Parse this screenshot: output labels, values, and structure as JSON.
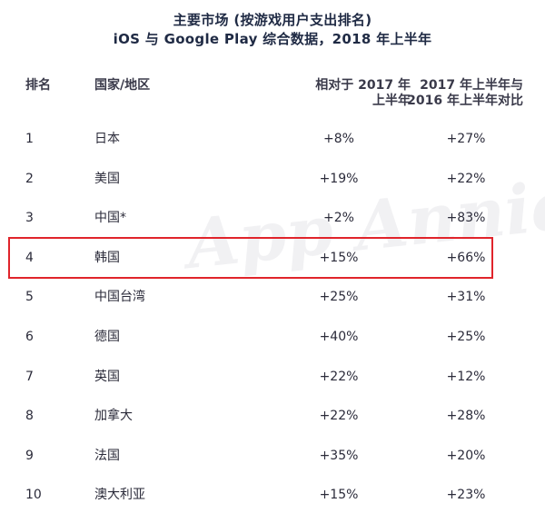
{
  "chart_data": {
    "type": "table",
    "title_line1": "主要市场 (按游戏用户支出排名)",
    "title_line2": "iOS 与 Google Play 综合数据，2018 年上半年",
    "columns": [
      "排名",
      "国家/地区",
      "相对于 2017 年上半年",
      "2017 年上半年与 2016 年上半年对比"
    ],
    "column_lines": {
      "growth": [
        "相对于 2017 年",
        "上半年"
      ],
      "compare": [
        "2017 年上半年与",
        "2016 年上半年对比"
      ]
    },
    "watermark": "App Annie",
    "highlight_rank": "4",
    "highlight_color": "#e0242b",
    "rows": [
      {
        "rank": "1",
        "country": "日本",
        "growth": "+8%",
        "compare": "+27%"
      },
      {
        "rank": "2",
        "country": "美国",
        "growth": "+19%",
        "compare": "+22%"
      },
      {
        "rank": "3",
        "country": "中国*",
        "growth": "+2%",
        "compare": "+83%"
      },
      {
        "rank": "4",
        "country": "韩国",
        "growth": "+15%",
        "compare": "+66%"
      },
      {
        "rank": "5",
        "country": "中国台湾",
        "growth": "+25%",
        "compare": "+31%"
      },
      {
        "rank": "6",
        "country": "德国",
        "growth": "+40%",
        "compare": "+25%"
      },
      {
        "rank": "7",
        "country": "英国",
        "growth": "+22%",
        "compare": "+12%"
      },
      {
        "rank": "8",
        "country": "加拿大",
        "growth": "+22%",
        "compare": "+28%"
      },
      {
        "rank": "9",
        "country": "法国",
        "growth": "+35%",
        "compare": "+20%"
      },
      {
        "rank": "10",
        "country": "澳大利亚",
        "growth": "+15%",
        "compare": "+23%"
      }
    ]
  }
}
